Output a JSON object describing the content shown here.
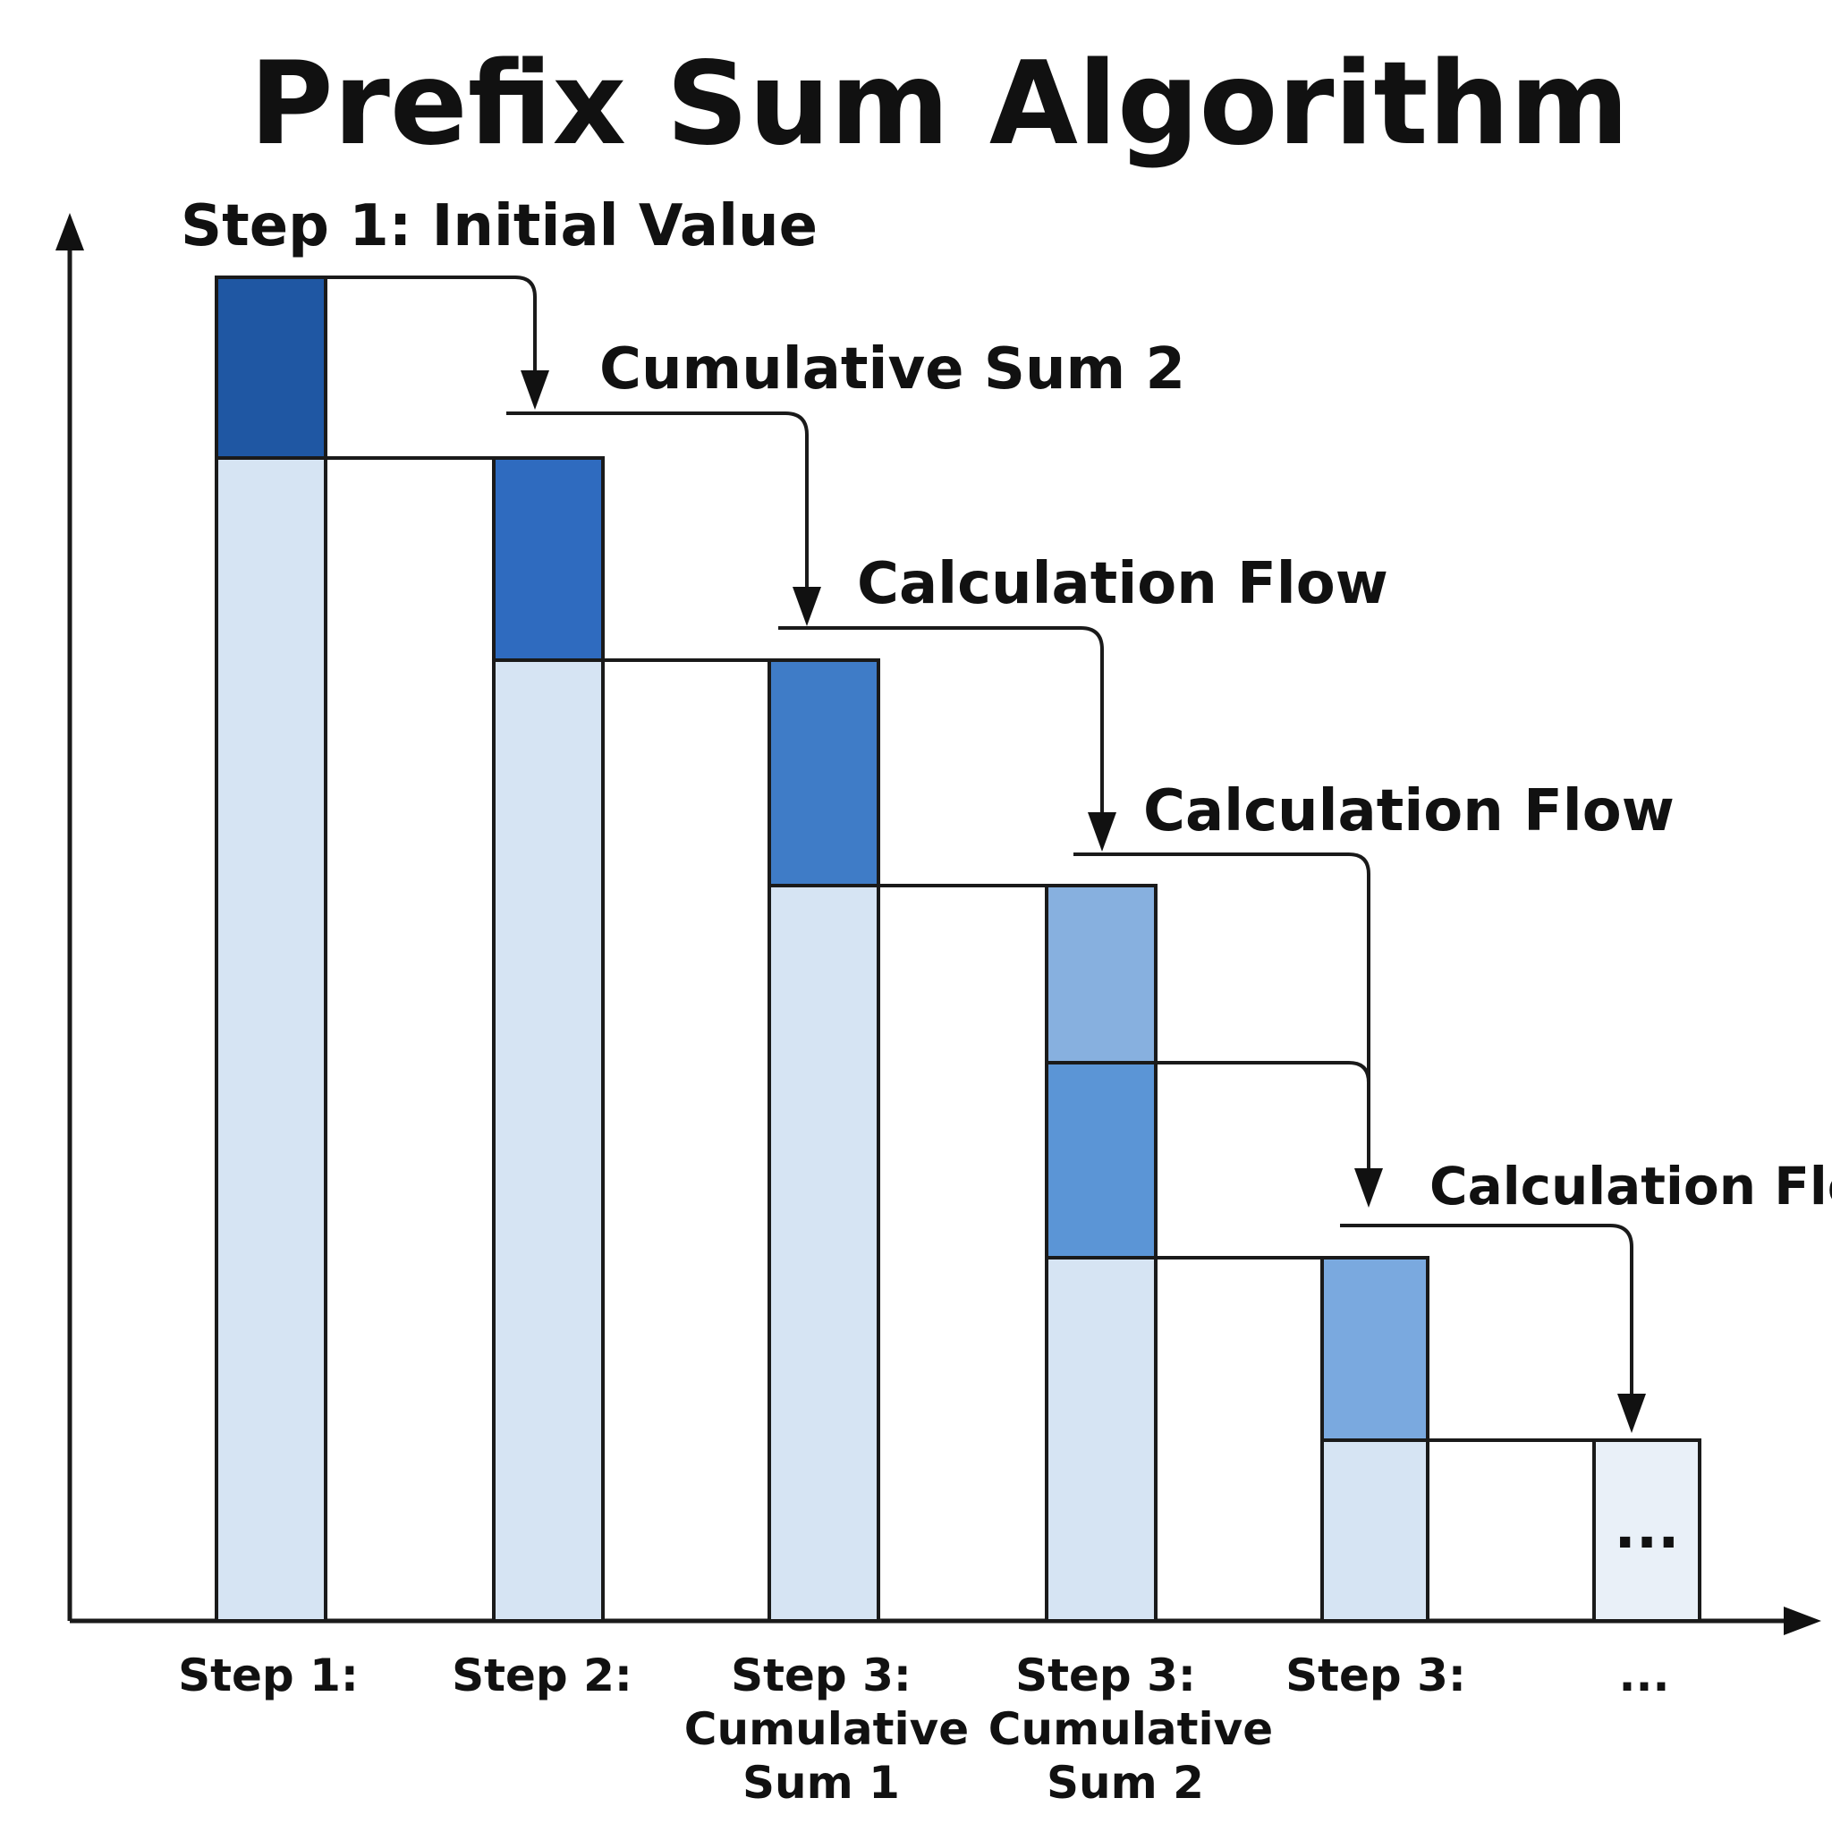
{
  "title": "Prefix Sum Algorithm",
  "colors": {
    "background": "#ffffff",
    "ink": "#1a1a1a",
    "light_fill": "#d6e4f3",
    "pale_fill": "#e9f0f8",
    "dark_blue": "#1f57a3",
    "mid_blue": "#2f6bbf",
    "blue": "#3f7cc7",
    "soft_blue": "#5b95d6",
    "light_blue": "#87b0df"
  },
  "flow_labels": [
    "Step 1: Initial Value",
    "Cumulative Sum 2",
    "Calculation Flow",
    "Calculation Flow",
    "Calculation Flow"
  ],
  "step_labels": [
    [
      "Step 1:"
    ],
    [
      "Step 2:"
    ],
    [
      "Step 3:",
      "Cumulative",
      "Sum 1"
    ],
    [
      "Step 3:",
      "Cumulative",
      "Sum 2"
    ],
    [
      "Step 3:"
    ],
    [
      "..."
    ]
  ],
  "ellipsis_in_box": "..."
}
